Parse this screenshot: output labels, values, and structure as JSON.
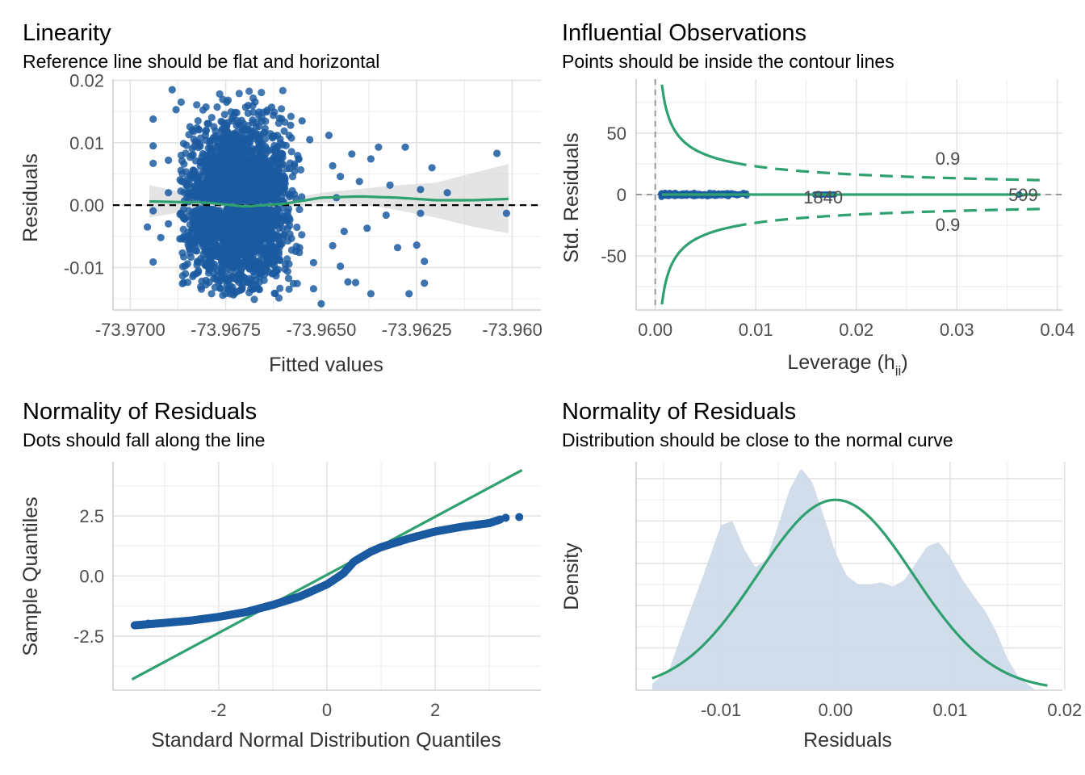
{
  "colors": {
    "point": "#1b5aa0",
    "green": "#2fa070",
    "ribbon": "#d9d9d9",
    "density_fill": "#cfdbea",
    "grid": "#e3e3e3"
  },
  "chart_data": [
    {
      "type": "scatter",
      "panel": "linearity",
      "title": "Linearity",
      "subtitle": "Reference line should be flat and horizontal",
      "xlabel": "Fitted values",
      "ylabel": "Residuals",
      "xlim": [
        -73.97045,
        -73.95925
      ],
      "ylim": [
        -0.0168,
        0.0202
      ],
      "xticks": [
        -73.97,
        -73.9675,
        -73.965,
        -73.9625,
        -73.96
      ],
      "xtick_labels": [
        "-73.9700",
        "-73.9675",
        "-73.9650",
        "-73.9625",
        "-73.960"
      ],
      "yticks": [
        -0.01,
        0,
        0.01,
        0.02
      ],
      "ytick_labels": [
        "-0.01",
        "0.00",
        "0.01",
        "0.02"
      ],
      "reference_line_y": 0,
      "smooth": {
        "x": [
          -73.9695,
          -73.968,
          -73.967,
          -73.966,
          -73.965,
          -73.964,
          -73.963,
          -73.962,
          -73.961,
          -73.9601
        ],
        "y": [
          0.0006,
          0.0004,
          -0.0002,
          0.0002,
          0.0012,
          0.0014,
          0.0012,
          0.0008,
          0.0008,
          0.001
        ],
        "ribbon_low": [
          -0.002,
          -0.0004,
          -0.0008,
          -0.0004,
          0.0004,
          0.0002,
          -0.0008,
          -0.002,
          -0.0035,
          -0.0045
        ],
        "ribbon_high": [
          0.0032,
          0.0012,
          0.0004,
          0.0008,
          0.002,
          0.0026,
          0.0032,
          0.0036,
          0.0052,
          0.0066
        ]
      },
      "outlier_points": [
        {
          "x": -73.96955,
          "y": -0.0035
        },
        {
          "x": -73.9694,
          "y": 0.0138
        },
        {
          "x": -73.9694,
          "y": 0.0095
        },
        {
          "x": -73.9694,
          "y": 0.0067
        },
        {
          "x": -73.9694,
          "y": -0.0009
        },
        {
          "x": -73.9694,
          "y": -0.0091
        },
        {
          "x": -73.9692,
          "y": -0.0052
        },
        {
          "x": -73.969,
          "y": 0.0072
        },
        {
          "x": -73.969,
          "y": 0.002
        },
        {
          "x": -73.969,
          "y": -0.003
        },
        {
          "x": -73.9689,
          "y": 0.0185
        },
        {
          "x": -73.9688,
          "y": 0.0153
        },
        {
          "x": -73.9687,
          "y": -0.0054
        },
        {
          "x": -73.9686,
          "y": -0.0124
        },
        {
          "x": -73.9685,
          "y": 0.0031
        },
        {
          "x": -73.9685,
          "y": -0.0094
        },
        {
          "x": -73.9655,
          "y": 0.0135
        },
        {
          "x": -73.9653,
          "y": 0.0105
        },
        {
          "x": -73.9652,
          "y": -0.0092
        },
        {
          "x": -73.9652,
          "y": -0.0134
        },
        {
          "x": -73.965,
          "y": -0.0158
        },
        {
          "x": -73.9648,
          "y": 0.0112
        },
        {
          "x": -73.9647,
          "y": 0.0063
        },
        {
          "x": -73.9647,
          "y": -0.0065
        },
        {
          "x": -73.9646,
          "y": 0.0012
        },
        {
          "x": -73.9645,
          "y": 0.0046
        },
        {
          "x": -73.9645,
          "y": -0.0098
        },
        {
          "x": -73.9644,
          "y": -0.0042
        },
        {
          "x": -73.9642,
          "y": 0.0082
        },
        {
          "x": -73.9641,
          "y": -0.0124
        },
        {
          "x": -73.964,
          "y": 0.0038
        },
        {
          "x": -73.9638,
          "y": -0.0037
        },
        {
          "x": -73.9637,
          "y": 0.0074
        },
        {
          "x": -73.9635,
          "y": 0.0093
        },
        {
          "x": -73.9633,
          "y": -0.0016
        },
        {
          "x": -73.9632,
          "y": 0.0032
        },
        {
          "x": -73.963,
          "y": -0.0068
        },
        {
          "x": -73.9628,
          "y": 0.0093
        },
        {
          "x": -73.9627,
          "y": -0.0142
        },
        {
          "x": -73.9625,
          "y": -0.0064
        },
        {
          "x": -73.9624,
          "y": 0.0025
        },
        {
          "x": -73.9624,
          "y": -0.0013
        },
        {
          "x": -73.9623,
          "y": -0.0125
        },
        {
          "x": -73.9623,
          "y": -0.009
        },
        {
          "x": -73.9621,
          "y": 0.006
        },
        {
          "x": -73.9617,
          "y": 0.002
        },
        {
          "x": -73.9604,
          "y": 0.0083
        },
        {
          "x": -73.96015,
          "y": -0.0013
        },
        {
          "x": -73.9637,
          "y": -0.0142
        },
        {
          "x": -73.9643,
          "y": -0.0123
        },
        {
          "x": -73.9658,
          "y": 0.0128
        },
        {
          "x": -73.9663,
          "y": 0.0157
        }
      ]
    },
    {
      "type": "scatter",
      "panel": "influential",
      "title": "Influential Observations",
      "subtitle": "Points should be inside the contour lines",
      "xlabel": "Leverage (h",
      "xlabel_sub": "ii",
      "xlabel_end": ")",
      "ylabel": "Std. Residuals",
      "xlim": [
        -0.0019,
        0.0405
      ],
      "ylim": [
        -94,
        94
      ],
      "xticks": [
        0,
        0.01,
        0.02,
        0.03,
        0.04
      ],
      "xtick_labels": [
        "0.00",
        "0.01",
        "0.02",
        "0.03",
        "0.04"
      ],
      "yticks": [
        -50,
        0,
        50
      ],
      "ytick_labels": [
        "-50",
        "0",
        "50"
      ],
      "contour_label": "0.9",
      "contour_label_positions": [
        {
          "x": 0.0291,
          "y": 29
        },
        {
          "x": 0.0291,
          "y": -25
        }
      ],
      "point_labels": [
        "1840",
        "599"
      ],
      "point_label_positions": [
        {
          "x": 0.0167,
          "y": -2
        },
        {
          "x": 0.0366,
          "y": 0
        }
      ],
      "high_leverage_points": [
        0.0159,
        0.0163,
        0.0166,
        0.0169,
        0.0172,
        0.0175,
        0.0178,
        0.0362
      ]
    },
    {
      "type": "scatter",
      "panel": "qq",
      "title": "Normality of Residuals",
      "subtitle": "Dots should fall along the line",
      "xlabel": "Standard Normal Distribution Quantiles",
      "ylabel": "Sample Quantiles",
      "xlim": [
        -3.95,
        3.95
      ],
      "ylim": [
        -4.75,
        4.75
      ],
      "xticks": [
        -2,
        0,
        2
      ],
      "xtick_labels": [
        "-2",
        "0",
        "2"
      ],
      "yticks": [
        -2.5,
        0,
        2.5
      ],
      "ytick_labels": [
        "-2.5",
        "0.0",
        "2.5"
      ],
      "reference_line": {
        "x": [
          -3.6,
          3.6
        ],
        "y": [
          -4.3,
          4.4
        ]
      },
      "sample_curve": {
        "x": [
          -3.55,
          -3.0,
          -2.5,
          -2.0,
          -1.5,
          -1.0,
          -0.5,
          0.0,
          0.3,
          0.5,
          0.8,
          1.0,
          1.5,
          2.0,
          2.5,
          3.0,
          3.2
        ],
        "y": [
          -2.05,
          -1.95,
          -1.85,
          -1.7,
          -1.5,
          -1.2,
          -0.85,
          -0.35,
          0.1,
          0.6,
          1.0,
          1.2,
          1.55,
          1.85,
          2.05,
          2.2,
          2.35
        ]
      },
      "tail_points": [
        {
          "x": 3.55,
          "y": 2.45
        },
        {
          "x": 3.3,
          "y": 2.42
        },
        {
          "x": -3.3,
          "y": -1.98
        }
      ]
    },
    {
      "type": "area",
      "panel": "density",
      "title": "Normality of Residuals",
      "subtitle": "Distribution should be close to the normal curve",
      "xlabel": "Residuals",
      "ylabel": "Density",
      "xlim": [
        -0.0174,
        0.0198
      ],
      "ylim": [
        0,
        1.08
      ],
      "xticks": [
        -0.01,
        0,
        0.01,
        0.02
      ],
      "xtick_labels": [
        "-0.01",
        "0.00",
        "0.01",
        "0.02"
      ],
      "density_curve": {
        "x": [
          -0.016,
          -0.0145,
          -0.013,
          -0.0115,
          -0.01,
          -0.009,
          -0.008,
          -0.007,
          -0.006,
          -0.005,
          -0.004,
          -0.003,
          -0.002,
          -0.001,
          0.0,
          0.001,
          0.002,
          0.003,
          0.004,
          0.005,
          0.006,
          0.007,
          0.008,
          0.009,
          0.01,
          0.011,
          0.012,
          0.013,
          0.014,
          0.015,
          0.016,
          0.0175
        ],
        "y": [
          0.03,
          0.1,
          0.33,
          0.55,
          0.78,
          0.8,
          0.67,
          0.58,
          0.62,
          0.78,
          0.95,
          1.05,
          0.98,
          0.82,
          0.65,
          0.54,
          0.5,
          0.5,
          0.51,
          0.49,
          0.52,
          0.6,
          0.68,
          0.7,
          0.63,
          0.53,
          0.45,
          0.38,
          0.28,
          0.15,
          0.06,
          0.0
        ]
      },
      "normal_curve": {
        "mean": 0,
        "sd": 0.0068,
        "peak": 0.9,
        "x_range": [
          -0.016,
          0.0185
        ]
      }
    }
  ]
}
